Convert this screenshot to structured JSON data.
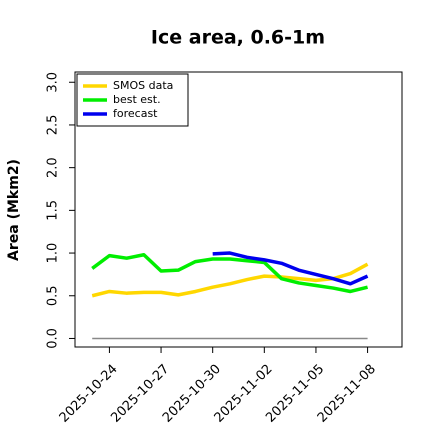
{
  "chart_data": {
    "type": "line",
    "title": "Ice area, 0.6-1m",
    "y_label": "Area (Mkm2)",
    "x": [
      "2025-10-23",
      "2025-10-24",
      "2025-10-25",
      "2025-10-26",
      "2025-10-27",
      "2025-10-28",
      "2025-10-29",
      "2025-10-30",
      "2025-10-31",
      "2025-11-01",
      "2025-11-02",
      "2025-11-03",
      "2025-11-04",
      "2025-11-05",
      "2025-11-06",
      "2025-11-07",
      "2025-11-08"
    ],
    "series": [
      {
        "name": "SMOS data",
        "color": "#ffd700",
        "values": [
          0.5,
          0.55,
          0.53,
          0.54,
          0.54,
          0.51,
          0.55,
          0.6,
          0.64,
          0.69,
          0.73,
          0.72,
          0.7,
          0.68,
          0.7,
          0.76,
          0.87
        ]
      },
      {
        "name": "best est.",
        "color": "#00ee00",
        "values": [
          0.82,
          0.97,
          0.94,
          0.98,
          0.79,
          0.8,
          0.9,
          0.93,
          0.93,
          0.91,
          0.89,
          0.7,
          0.65,
          0.62,
          0.59,
          0.55,
          0.6
        ]
      },
      {
        "name": "forecast",
        "color": "#0000ee",
        "values": [
          null,
          null,
          null,
          null,
          null,
          null,
          null,
          0.99,
          1.0,
          0.95,
          0.92,
          0.88,
          0.8,
          0.75,
          0.7,
          0.64,
          0.73
        ]
      },
      {
        "color": "#888888",
        "values": [
          0,
          0,
          0,
          0,
          0,
          0,
          0,
          0,
          0,
          0,
          0,
          0,
          0,
          0,
          0,
          0,
          0
        ]
      }
    ],
    "xlim": [
      "2025-10-22",
      "2025-11-10"
    ],
    "xticks": [
      "2025-10-24",
      "2025-10-27",
      "2025-10-30",
      "2025-11-02",
      "2025-11-05",
      "2025-11-08"
    ],
    "highlight_xtick": "2025-10-30",
    "highlight_color": "#228b22",
    "ylim": [
      -0.1,
      3.12
    ],
    "yticks": [
      {
        "value": 0,
        "label": "0.0"
      },
      {
        "value": 0.5,
        "label": "0.5"
      },
      {
        "value": 1,
        "label": "1.0"
      },
      {
        "value": 1.5,
        "label": "1.5"
      },
      {
        "value": 2,
        "label": "2.0"
      },
      {
        "value": 2.5,
        "label": "2.5"
      },
      {
        "value": 3,
        "label": "3.0"
      }
    ],
    "legend": "upper left"
  }
}
